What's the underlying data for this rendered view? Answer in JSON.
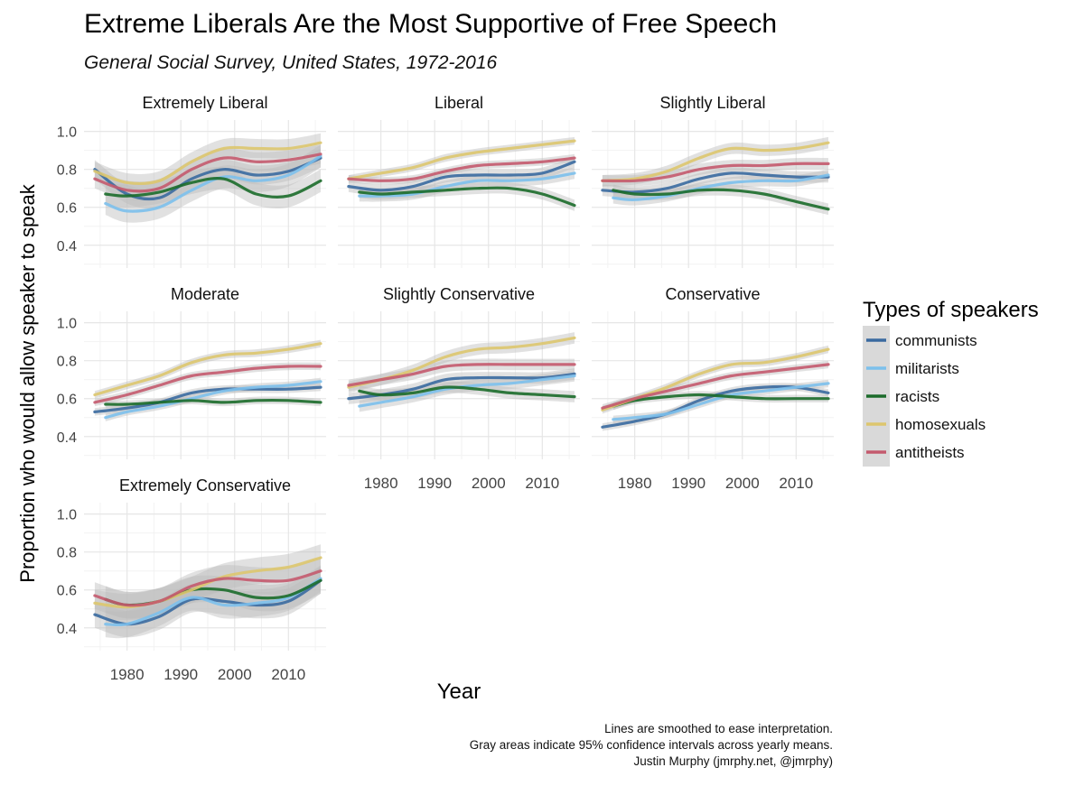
{
  "title": "Extreme Liberals Are the Most Supportive of Free Speech",
  "subtitle": "General Social Survey, United States, 1972-2016",
  "caption": [
    "Lines are smoothed to ease interpretation.",
    "Gray areas indicate 95% confidence intervals across yearly means.",
    "Justin Murphy (jmrphy.net, @jmrphy)"
  ],
  "colors": {
    "communists": "#3a6aa0",
    "militarists": "#7cc0ec",
    "racists": "#1b6b2a",
    "homosexuals": "#ddc66e",
    "antitheists": "#c45a6e",
    "ribbon": "#bdbdbd",
    "grid_major": "#e6e6e6",
    "grid_minor": "#f2f2f2"
  },
  "chart_data": {
    "type": "line",
    "xlabel": "Year",
    "ylabel": "Proportion who would allow speaker to speak",
    "xlim": [
      1972,
      2017
    ],
    "ylim": [
      0.28,
      1.06
    ],
    "x_ticks": [
      1980,
      1990,
      2000,
      2010
    ],
    "y_ticks": [
      0.4,
      0.6,
      0.8,
      1.0
    ],
    "y_tick_labels": [
      "0.4",
      "0.6",
      "0.8",
      "1.0"
    ],
    "grid": true,
    "legend": {
      "title": "Types of speakers",
      "position": "right",
      "entries": [
        "communists",
        "militarists",
        "racists",
        "homosexuals",
        "antitheists"
      ]
    },
    "x": [
      1974,
      1980,
      1986,
      1992,
      1998,
      2004,
      2010,
      2016
    ],
    "panels": [
      {
        "title": "Extremely Liberal",
        "series": [
          {
            "name": "communists",
            "start": 1974,
            "values": [
              0.8,
              0.67,
              0.65,
              0.75,
              0.8,
              0.77,
              0.79,
              0.86
            ],
            "ci": 0.05
          },
          {
            "name": "militarists",
            "start": 1976,
            "values": [
              0.62,
              0.58,
              0.6,
              0.69,
              0.76,
              0.74,
              0.77,
              0.87
            ],
            "ci": 0.06
          },
          {
            "name": "racists",
            "start": 1976,
            "values": [
              0.67,
              0.66,
              0.68,
              0.73,
              0.75,
              0.67,
              0.66,
              0.74
            ],
            "ci": 0.06
          },
          {
            "name": "homosexuals",
            "start": 1974,
            "values": [
              0.79,
              0.73,
              0.74,
              0.84,
              0.91,
              0.91,
              0.91,
              0.94
            ],
            "ci": 0.05
          },
          {
            "name": "antitheists",
            "start": 1974,
            "values": [
              0.75,
              0.69,
              0.7,
              0.8,
              0.86,
              0.84,
              0.85,
              0.88
            ],
            "ci": 0.05
          }
        ]
      },
      {
        "title": "Liberal",
        "series": [
          {
            "name": "communists",
            "start": 1974,
            "values": [
              0.71,
              0.69,
              0.71,
              0.76,
              0.77,
              0.77,
              0.78,
              0.84
            ],
            "ci": 0.03
          },
          {
            "name": "militarists",
            "start": 1976,
            "values": [
              0.66,
              0.66,
              0.67,
              0.71,
              0.74,
              0.74,
              0.75,
              0.78
            ],
            "ci": 0.03
          },
          {
            "name": "racists",
            "start": 1976,
            "values": [
              0.68,
              0.67,
              0.68,
              0.69,
              0.7,
              0.7,
              0.67,
              0.61
            ],
            "ci": 0.03
          },
          {
            "name": "homosexuals",
            "start": 1974,
            "values": [
              0.75,
              0.78,
              0.81,
              0.86,
              0.89,
              0.91,
              0.93,
              0.95
            ],
            "ci": 0.02
          },
          {
            "name": "antitheists",
            "start": 1974,
            "values": [
              0.75,
              0.74,
              0.75,
              0.79,
              0.82,
              0.83,
              0.84,
              0.86
            ],
            "ci": 0.02
          }
        ]
      },
      {
        "title": "Slightly Liberal",
        "series": [
          {
            "name": "communists",
            "start": 1974,
            "values": [
              0.69,
              0.68,
              0.7,
              0.75,
              0.78,
              0.77,
              0.76,
              0.76
            ],
            "ci": 0.03
          },
          {
            "name": "militarists",
            "start": 1976,
            "values": [
              0.65,
              0.64,
              0.66,
              0.7,
              0.73,
              0.74,
              0.74,
              0.77
            ],
            "ci": 0.03
          },
          {
            "name": "racists",
            "start": 1976,
            "values": [
              0.69,
              0.67,
              0.67,
              0.69,
              0.69,
              0.67,
              0.63,
              0.59
            ],
            "ci": 0.03
          },
          {
            "name": "homosexuals",
            "start": 1974,
            "values": [
              0.74,
              0.75,
              0.79,
              0.86,
              0.91,
              0.9,
              0.91,
              0.94
            ],
            "ci": 0.03
          },
          {
            "name": "antitheists",
            "start": 1974,
            "values": [
              0.74,
              0.74,
              0.76,
              0.8,
              0.82,
              0.82,
              0.83,
              0.83
            ],
            "ci": 0.03
          }
        ]
      },
      {
        "title": "Moderate",
        "series": [
          {
            "name": "communists",
            "start": 1974,
            "values": [
              0.53,
              0.55,
              0.58,
              0.63,
              0.65,
              0.65,
              0.65,
              0.66
            ],
            "ci": 0.02
          },
          {
            "name": "militarists",
            "start": 1976,
            "values": [
              0.5,
              0.53,
              0.56,
              0.6,
              0.64,
              0.66,
              0.67,
              0.69
            ],
            "ci": 0.02
          },
          {
            "name": "racists",
            "start": 1976,
            "values": [
              0.57,
              0.57,
              0.58,
              0.59,
              0.58,
              0.59,
              0.59,
              0.58
            ],
            "ci": 0.02
          },
          {
            "name": "homosexuals",
            "start": 1974,
            "values": [
              0.62,
              0.67,
              0.72,
              0.79,
              0.83,
              0.84,
              0.86,
              0.89
            ],
            "ci": 0.02
          },
          {
            "name": "antitheists",
            "start": 1974,
            "values": [
              0.58,
              0.62,
              0.67,
              0.72,
              0.74,
              0.76,
              0.77,
              0.77
            ],
            "ci": 0.02
          }
        ]
      },
      {
        "title": "Slightly Conservative",
        "series": [
          {
            "name": "communists",
            "start": 1974,
            "values": [
              0.6,
              0.62,
              0.65,
              0.7,
              0.71,
              0.71,
              0.71,
              0.73
            ],
            "ci": 0.03
          },
          {
            "name": "militarists",
            "start": 1976,
            "values": [
              0.56,
              0.58,
              0.61,
              0.65,
              0.67,
              0.68,
              0.7,
              0.72
            ],
            "ci": 0.03
          },
          {
            "name": "racists",
            "start": 1976,
            "values": [
              0.64,
              0.62,
              0.63,
              0.66,
              0.65,
              0.63,
              0.62,
              0.61
            ],
            "ci": 0.03
          },
          {
            "name": "homosexuals",
            "start": 1974,
            "values": [
              0.66,
              0.7,
              0.75,
              0.82,
              0.86,
              0.87,
              0.89,
              0.92
            ],
            "ci": 0.03
          },
          {
            "name": "antitheists",
            "start": 1974,
            "values": [
              0.67,
              0.7,
              0.73,
              0.77,
              0.78,
              0.78,
              0.78,
              0.78
            ],
            "ci": 0.03
          }
        ]
      },
      {
        "title": "Conservative",
        "series": [
          {
            "name": "communists",
            "start": 1974,
            "values": [
              0.45,
              0.48,
              0.52,
              0.59,
              0.64,
              0.66,
              0.66,
              0.63
            ],
            "ci": 0.02
          },
          {
            "name": "militarists",
            "start": 1976,
            "values": [
              0.49,
              0.5,
              0.52,
              0.57,
              0.62,
              0.64,
              0.66,
              0.68
            ],
            "ci": 0.02
          },
          {
            "name": "racists",
            "start": 1976,
            "values": [
              0.56,
              0.59,
              0.61,
              0.62,
              0.61,
              0.6,
              0.6,
              0.6
            ],
            "ci": 0.02
          },
          {
            "name": "homosexuals",
            "start": 1974,
            "values": [
              0.54,
              0.6,
              0.66,
              0.73,
              0.78,
              0.79,
              0.82,
              0.86
            ],
            "ci": 0.02
          },
          {
            "name": "antitheists",
            "start": 1974,
            "values": [
              0.55,
              0.6,
              0.64,
              0.68,
              0.72,
              0.74,
              0.76,
              0.78
            ],
            "ci": 0.02
          }
        ]
      },
      {
        "title": "Extremely Conservative",
        "series": [
          {
            "name": "communists",
            "start": 1974,
            "values": [
              0.47,
              0.42,
              0.46,
              0.55,
              0.54,
              0.52,
              0.54,
              0.65
            ],
            "ci": 0.07
          },
          {
            "name": "militarists",
            "start": 1976,
            "values": [
              0.42,
              0.42,
              0.48,
              0.56,
              0.52,
              0.53,
              0.56,
              0.66
            ],
            "ci": 0.07
          },
          {
            "name": "racists",
            "start": 1976,
            "values": [
              0.55,
              0.52,
              0.54,
              0.6,
              0.6,
              0.56,
              0.57,
              0.65
            ],
            "ci": 0.07
          },
          {
            "name": "homosexuals",
            "start": 1974,
            "values": [
              0.53,
              0.51,
              0.54,
              0.6,
              0.67,
              0.7,
              0.72,
              0.77
            ],
            "ci": 0.07
          },
          {
            "name": "antitheists",
            "start": 1974,
            "values": [
              0.57,
              0.52,
              0.54,
              0.62,
              0.66,
              0.65,
              0.65,
              0.7
            ],
            "ci": 0.07
          }
        ]
      }
    ]
  }
}
